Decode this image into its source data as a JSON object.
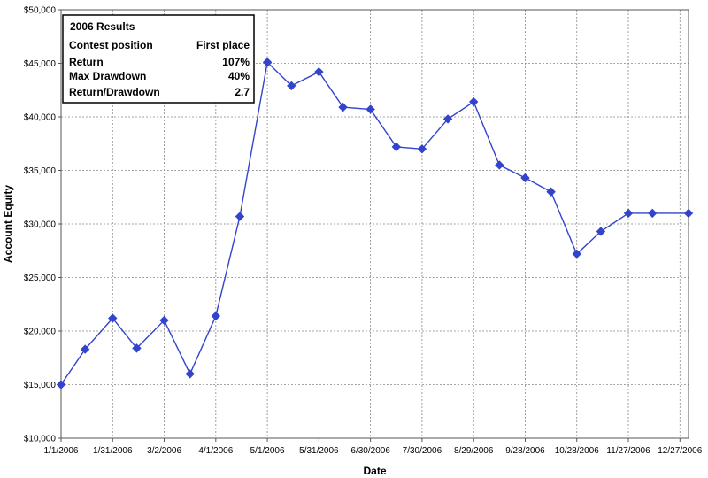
{
  "chart_data": {
    "type": "line",
    "xlabel": "Date",
    "ylabel": "Account Equity",
    "ylim": [
      10000,
      50000
    ],
    "xlim": [
      "1/1/2006",
      "1/1/2007"
    ],
    "y_ticks": [
      "$10,000",
      "$15,000",
      "$20,000",
      "$25,000",
      "$30,000",
      "$35,000",
      "$40,000",
      "$45,000",
      "$50,000"
    ],
    "x_ticks": [
      "1/1/2006",
      "1/31/2006",
      "3/2/2006",
      "4/1/2006",
      "5/1/2006",
      "5/31/2006",
      "6/30/2006",
      "7/30/2006",
      "8/29/2006",
      "9/28/2006",
      "10/28/2006",
      "11/27/2006",
      "12/27/2006"
    ],
    "grid": true,
    "series_color": "#3344cc",
    "series": [
      {
        "x": [
          "1/1/2006",
          "1/15/2006",
          "1/31/2006",
          "2/14/2006",
          "3/2/2006",
          "3/17/2006",
          "4/1/2006",
          "4/15/2006",
          "5/1/2006",
          "5/15/2006",
          "5/31/2006",
          "6/14/2006",
          "6/30/2006",
          "7/15/2006",
          "7/30/2006",
          "8/14/2006",
          "8/29/2006",
          "9/13/2006",
          "9/28/2006",
          "10/13/2006",
          "10/28/2006",
          "11/11/2006",
          "11/27/2006",
          "12/11/2006",
          "1/1/2007"
        ],
        "values": [
          15000,
          18300,
          21200,
          18400,
          21000,
          16000,
          21400,
          30700,
          45100,
          42900,
          44200,
          40900,
          40700,
          37200,
          37000,
          39800,
          41400,
          35500,
          34300,
          33000,
          27200,
          29300,
          31000,
          31000,
          31000
        ]
      }
    ],
    "results_box": {
      "title": "2006 Results",
      "rows": [
        {
          "label": "Contest position",
          "value": "First place"
        },
        {
          "label": "Return",
          "value": "107%"
        },
        {
          "label": "Max Drawdown",
          "value": "40%"
        },
        {
          "label": "Return/Drawdown",
          "value": "2.7"
        }
      ]
    }
  }
}
